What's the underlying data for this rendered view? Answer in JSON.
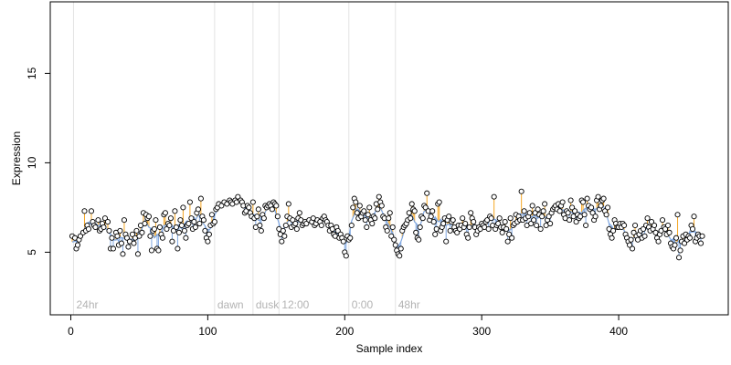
{
  "chart_data": {
    "type": "scatter",
    "title": "",
    "xlabel": "Sample index",
    "ylabel": "Expression",
    "xlim": [
      -15,
      480
    ],
    "ylim": [
      1.5,
      19
    ],
    "x_ticks": [
      0,
      100,
      200,
      300,
      400
    ],
    "y_ticks": [
      5,
      10,
      15
    ],
    "grid": false,
    "colors": {
      "point_fill": "#ffffff",
      "point_stroke": "#000000",
      "trend_line": "#7ea6e0",
      "residual_above": "#f5a623",
      "residual_below": "#7ea6e0",
      "annotation_line": "#e3e3e3",
      "annotation_text": "#b3b3b3"
    },
    "annotations": [
      {
        "label": "24hr",
        "x": 2
      },
      {
        "label": "dawn",
        "x": 105
      },
      {
        "label": "dusk",
        "x": 133
      },
      {
        "label": "12:00",
        "x": 152
      },
      {
        "label": "0:00",
        "x": 203
      },
      {
        "label": "48hr",
        "x": 237
      }
    ],
    "series_points": [
      [
        1,
        5.9
      ],
      [
        3,
        5.8
      ],
      [
        4,
        5.2
      ],
      [
        5,
        5.4
      ],
      [
        6,
        5.7
      ],
      [
        7,
        5.9
      ],
      [
        9,
        6.1
      ],
      [
        10,
        7.3
      ],
      [
        11,
        6.2
      ],
      [
        12,
        6.5
      ],
      [
        13,
        6.3
      ],
      [
        15,
        7.3
      ],
      [
        16,
        6.7
      ],
      [
        17,
        6.5
      ],
      [
        18,
        6.4
      ],
      [
        20,
        6.8
      ],
      [
        21,
        6.2
      ],
      [
        22,
        6.3
      ],
      [
        23,
        6.6
      ],
      [
        24,
        6.4
      ],
      [
        25,
        6.9
      ],
      [
        27,
        6.7
      ],
      [
        28,
        6.2
      ],
      [
        29,
        5.2
      ],
      [
        30,
        5.8
      ],
      [
        31,
        5.2
      ],
      [
        33,
        6.1
      ],
      [
        34,
        5.9
      ],
      [
        35,
        5.4
      ],
      [
        36,
        6.2
      ],
      [
        37,
        5.5
      ],
      [
        38,
        4.9
      ],
      [
        39,
        6.8
      ],
      [
        40,
        6.0
      ],
      [
        41,
        5.8
      ],
      [
        42,
        5.3
      ],
      [
        43,
        5.6
      ],
      [
        45,
        6.0
      ],
      [
        46,
        5.5
      ],
      [
        47,
        5.8
      ],
      [
        48,
        6.2
      ],
      [
        49,
        4.9
      ],
      [
        50,
        5.9
      ],
      [
        51,
        6.5
      ],
      [
        52,
        6.1
      ],
      [
        53,
        7.2
      ],
      [
        54,
        6.6
      ],
      [
        55,
        7.1
      ],
      [
        56,
        6.9
      ],
      [
        57,
        7.0
      ],
      [
        58,
        5.9
      ],
      [
        59,
        5.1
      ],
      [
        60,
        6.2
      ],
      [
        61,
        6.3
      ],
      [
        62,
        6.8
      ],
      [
        63,
        5.2
      ],
      [
        64,
        5.1
      ],
      [
        65,
        6.4
      ],
      [
        66,
        6.0
      ],
      [
        67,
        5.8
      ],
      [
        68,
        7.1
      ],
      [
        69,
        7.2
      ],
      [
        70,
        6.3
      ],
      [
        71,
        6.6
      ],
      [
        72,
        6.5
      ],
      [
        73,
        6.9
      ],
      [
        74,
        5.6
      ],
      [
        75,
        6.2
      ],
      [
        76,
        7.3
      ],
      [
        77,
        6.4
      ],
      [
        78,
        5.2
      ],
      [
        79,
        6.1
      ],
      [
        80,
        6.8
      ],
      [
        81,
        6.5
      ],
      [
        82,
        7.5
      ],
      [
        83,
        6.2
      ],
      [
        84,
        5.8
      ],
      [
        85,
        6.5
      ],
      [
        86,
        6.6
      ],
      [
        87,
        7.8
      ],
      [
        88,
        6.9
      ],
      [
        89,
        6.3
      ],
      [
        90,
        6.7
      ],
      [
        91,
        6.4
      ],
      [
        92,
        7.2
      ],
      [
        93,
        7.4
      ],
      [
        94,
        6.6
      ],
      [
        95,
        8.0
      ],
      [
        96,
        7.0
      ],
      [
        97,
        6.8
      ],
      [
        98,
        6.2
      ],
      [
        99,
        5.8
      ],
      [
        100,
        5.6
      ],
      [
        101,
        6.0
      ],
      [
        102,
        6.5
      ],
      [
        103,
        7.1
      ],
      [
        104,
        6.6
      ],
      [
        105,
        6.7
      ],
      [
        106,
        7.4
      ],
      [
        107,
        7.5
      ],
      [
        108,
        7.7
      ],
      [
        110,
        7.6
      ],
      [
        112,
        7.8
      ],
      [
        114,
        7.7
      ],
      [
        116,
        7.9
      ],
      [
        117,
        7.8
      ],
      [
        118,
        7.7
      ],
      [
        120,
        7.9
      ],
      [
        121,
        7.8
      ],
      [
        122,
        8.1
      ],
      [
        124,
        7.9
      ],
      [
        125,
        7.8
      ],
      [
        126,
        7.6
      ],
      [
        127,
        7.2
      ],
      [
        128,
        7.3
      ],
      [
        129,
        7.6
      ],
      [
        130,
        7.5
      ],
      [
        131,
        7.2
      ],
      [
        132,
        7.0
      ],
      [
        133,
        7.8
      ],
      [
        134,
        6.9
      ],
      [
        135,
        6.4
      ],
      [
        136,
        7.0
      ],
      [
        137,
        7.4
      ],
      [
        138,
        6.5
      ],
      [
        139,
        6.2
      ],
      [
        140,
        7.1
      ],
      [
        141,
        6.9
      ],
      [
        142,
        7.6
      ],
      [
        143,
        7.5
      ],
      [
        144,
        7.6
      ],
      [
        145,
        7.7
      ],
      [
        146,
        7.6
      ],
      [
        147,
        7.4
      ],
      [
        148,
        7.8
      ],
      [
        149,
        7.7
      ],
      [
        150,
        7.6
      ],
      [
        151,
        7.0
      ],
      [
        152,
        6.3
      ],
      [
        153,
        6.0
      ],
      [
        154,
        5.6
      ],
      [
        155,
        6.2
      ],
      [
        156,
        5.9
      ],
      [
        157,
        6.5
      ],
      [
        158,
        7.0
      ],
      [
        159,
        7.7
      ],
      [
        160,
        6.9
      ],
      [
        161,
        6.4
      ],
      [
        162,
        6.8
      ],
      [
        163,
        6.5
      ],
      [
        164,
        6.6
      ],
      [
        165,
        6.3
      ],
      [
        166,
        6.9
      ],
      [
        167,
        7.2
      ],
      [
        168,
        6.8
      ],
      [
        169,
        6.5
      ],
      [
        170,
        6.6
      ],
      [
        171,
        6.7
      ],
      [
        172,
        6.6
      ],
      [
        174,
        6.8
      ],
      [
        176,
        6.7
      ],
      [
        177,
        6.9
      ],
      [
        178,
        6.5
      ],
      [
        179,
        6.6
      ],
      [
        180,
        6.8
      ],
      [
        182,
        6.7
      ],
      [
        183,
        6.5
      ],
      [
        184,
        6.9
      ],
      [
        185,
        7.0
      ],
      [
        186,
        6.8
      ],
      [
        187,
        6.7
      ],
      [
        188,
        6.5
      ],
      [
        189,
        6.2
      ],
      [
        190,
        6.5
      ],
      [
        191,
        6.3
      ],
      [
        192,
        6.0
      ],
      [
        193,
        5.9
      ],
      [
        194,
        6.4
      ],
      [
        195,
        6.2
      ],
      [
        196,
        5.8
      ],
      [
        197,
        6.0
      ],
      [
        198,
        5.8
      ],
      [
        199,
        5.6
      ],
      [
        200,
        5.0
      ],
      [
        201,
        4.8
      ],
      [
        202,
        5.9
      ],
      [
        203,
        5.7
      ],
      [
        204,
        5.8
      ],
      [
        205,
        6.5
      ],
      [
        206,
        7.5
      ],
      [
        207,
        8.0
      ],
      [
        208,
        7.8
      ],
      [
        209,
        7.2
      ],
      [
        210,
        6.9
      ],
      [
        211,
        7.6
      ],
      [
        212,
        7.0
      ],
      [
        213,
        7.2
      ],
      [
        214,
        7.3
      ],
      [
        215,
        6.8
      ],
      [
        216,
        6.4
      ],
      [
        217,
        7.1
      ],
      [
        218,
        7.5
      ],
      [
        219,
        6.8
      ],
      [
        220,
        6.6
      ],
      [
        221,
        7.0
      ],
      [
        222,
        6.9
      ],
      [
        223,
        7.7
      ],
      [
        224,
        7.4
      ],
      [
        225,
        8.1
      ],
      [
        226,
        7.8
      ],
      [
        227,
        7.6
      ],
      [
        228,
        7.0
      ],
      [
        229,
        6.9
      ],
      [
        230,
        6.4
      ],
      [
        231,
        6.2
      ],
      [
        232,
        6.9
      ],
      [
        233,
        7.2
      ],
      [
        234,
        5.9
      ],
      [
        235,
        6.4
      ],
      [
        236,
        5.7
      ],
      [
        237,
        5.4
      ],
      [
        238,
        5.1
      ],
      [
        239,
        4.9
      ],
      [
        240,
        4.8
      ],
      [
        241,
        5.2
      ],
      [
        242,
        6.2
      ],
      [
        243,
        6.4
      ],
      [
        244,
        6.5
      ],
      [
        245,
        6.6
      ],
      [
        246,
        6.8
      ],
      [
        247,
        7.2
      ],
      [
        248,
        6.9
      ],
      [
        249,
        7.7
      ],
      [
        250,
        7.4
      ],
      [
        251,
        7.3
      ],
      [
        252,
        6.1
      ],
      [
        253,
        5.8
      ],
      [
        254,
        5.7
      ],
      [
        255,
        6.4
      ],
      [
        256,
        7.0
      ],
      [
        257,
        6.9
      ],
      [
        258,
        7.6
      ],
      [
        259,
        7.5
      ],
      [
        260,
        8.3
      ],
      [
        261,
        7.3
      ],
      [
        262,
        6.8
      ],
      [
        263,
        7.0
      ],
      [
        264,
        7.3
      ],
      [
        265,
        6.7
      ],
      [
        266,
        6.0
      ],
      [
        267,
        6.3
      ],
      [
        268,
        7.7
      ],
      [
        269,
        7.8
      ],
      [
        270,
        6.2
      ],
      [
        271,
        6.4
      ],
      [
        272,
        6.6
      ],
      [
        273,
        6.9
      ],
      [
        274,
        5.6
      ],
      [
        275,
        6.8
      ],
      [
        276,
        7.0
      ],
      [
        277,
        6.2
      ],
      [
        278,
        6.7
      ],
      [
        279,
        6.8
      ],
      [
        280,
        6.4
      ],
      [
        281,
        6.2
      ],
      [
        282,
        6.1
      ],
      [
        283,
        6.5
      ],
      [
        284,
        6.3
      ],
      [
        285,
        6.5
      ],
      [
        286,
        6.9
      ],
      [
        287,
        6.4
      ],
      [
        288,
        6.6
      ],
      [
        289,
        6.0
      ],
      [
        290,
        5.8
      ],
      [
        291,
        6.4
      ],
      [
        292,
        7.2
      ],
      [
        293,
        6.9
      ],
      [
        294,
        6.7
      ],
      [
        295,
        6.4
      ],
      [
        296,
        6.0
      ],
      [
        297,
        6.2
      ],
      [
        298,
        6.4
      ],
      [
        299,
        6.3
      ],
      [
        300,
        6.6
      ],
      [
        301,
        6.5
      ],
      [
        302,
        6.4
      ],
      [
        303,
        6.7
      ],
      [
        304,
        6.8
      ],
      [
        305,
        6.3
      ],
      [
        306,
        7.0
      ],
      [
        307,
        6.9
      ],
      [
        308,
        6.5
      ],
      [
        309,
        8.1
      ],
      [
        310,
        6.3
      ],
      [
        311,
        6.5
      ],
      [
        312,
        6.6
      ],
      [
        313,
        6.9
      ],
      [
        314,
        6.4
      ],
      [
        315,
        6.1
      ],
      [
        316,
        6.4
      ],
      [
        317,
        6.7
      ],
      [
        318,
        6.3
      ],
      [
        319,
        5.6
      ],
      [
        320,
        6.0
      ],
      [
        321,
        6.9
      ],
      [
        322,
        5.8
      ],
      [
        323,
        6.5
      ],
      [
        324,
        6.6
      ],
      [
        325,
        7.1
      ],
      [
        326,
        6.7
      ],
      [
        327,
        7.0
      ],
      [
        328,
        6.8
      ],
      [
        329,
        8.4
      ],
      [
        330,
        6.8
      ],
      [
        331,
        7.3
      ],
      [
        332,
        6.9
      ],
      [
        333,
        6.5
      ],
      [
        334,
        7.0
      ],
      [
        335,
        7.2
      ],
      [
        336,
        6.6
      ],
      [
        337,
        7.6
      ],
      [
        338,
        6.8
      ],
      [
        339,
        7.2
      ],
      [
        340,
        6.5
      ],
      [
        341,
        7.4
      ],
      [
        342,
        7.1
      ],
      [
        343,
        6.3
      ],
      [
        344,
        7.0
      ],
      [
        345,
        7.3
      ],
      [
        346,
        7.7
      ],
      [
        347,
        6.5
      ],
      [
        348,
        6.8
      ],
      [
        349,
        7.0
      ],
      [
        350,
        6.6
      ],
      [
        351,
        7.2
      ],
      [
        352,
        7.4
      ],
      [
        353,
        7.5
      ],
      [
        354,
        7.6
      ],
      [
        355,
        7.4
      ],
      [
        356,
        7.7
      ],
      [
        357,
        7.3
      ],
      [
        358,
        7.6
      ],
      [
        359,
        7.8
      ],
      [
        360,
        7.1
      ],
      [
        361,
        6.9
      ],
      [
        362,
        7.3
      ],
      [
        363,
        7.2
      ],
      [
        364,
        6.8
      ],
      [
        365,
        7.9
      ],
      [
        366,
        7.5
      ],
      [
        367,
        7.0
      ],
      [
        368,
        7.3
      ],
      [
        369,
        6.7
      ],
      [
        370,
        7.1
      ],
      [
        371,
        6.9
      ],
      [
        372,
        7.0
      ],
      [
        373,
        7.9
      ],
      [
        374,
        7.8
      ],
      [
        375,
        7.1
      ],
      [
        376,
        6.5
      ],
      [
        377,
        8.0
      ],
      [
        378,
        7.6
      ],
      [
        379,
        7.4
      ],
      [
        380,
        7.5
      ],
      [
        381,
        7.2
      ],
      [
        382,
        6.8
      ],
      [
        383,
        7.0
      ],
      [
        384,
        7.9
      ],
      [
        385,
        8.1
      ],
      [
        386,
        7.4
      ],
      [
        387,
        7.6
      ],
      [
        388,
        7.9
      ],
      [
        389,
        8.0
      ],
      [
        390,
        7.3
      ],
      [
        391,
        7.1
      ],
      [
        392,
        7.5
      ],
      [
        393,
        6.3
      ],
      [
        394,
        6.0
      ],
      [
        395,
        5.8
      ],
      [
        396,
        6.2
      ],
      [
        397,
        6.8
      ],
      [
        398,
        6.6
      ],
      [
        399,
        6.4
      ],
      [
        400,
        6.4
      ],
      [
        401,
        6.6
      ],
      [
        402,
        6.4
      ],
      [
        403,
        6.6
      ],
      [
        404,
        6.5
      ],
      [
        405,
        6.0
      ],
      [
        406,
        5.8
      ],
      [
        407,
        5.6
      ],
      [
        408,
        5.4
      ],
      [
        409,
        5.7
      ],
      [
        410,
        5.2
      ],
      [
        411,
        6.1
      ],
      [
        412,
        6.5
      ],
      [
        413,
        5.9
      ],
      [
        414,
        5.7
      ],
      [
        415,
        6.0
      ],
      [
        416,
        6.2
      ],
      [
        417,
        5.8
      ],
      [
        418,
        6.3
      ],
      [
        419,
        5.9
      ],
      [
        420,
        6.5
      ],
      [
        421,
        6.9
      ],
      [
        422,
        6.4
      ],
      [
        423,
        6.2
      ],
      [
        424,
        6.7
      ],
      [
        425,
        6.3
      ],
      [
        426,
        6.5
      ],
      [
        427,
        6.1
      ],
      [
        428,
        5.8
      ],
      [
        429,
        5.6
      ],
      [
        430,
        6.0
      ],
      [
        431,
        6.2
      ],
      [
        432,
        6.8
      ],
      [
        433,
        6.4
      ],
      [
        434,
        6.3
      ],
      [
        435,
        6.0
      ],
      [
        436,
        6.5
      ],
      [
        437,
        6.1
      ],
      [
        438,
        5.5
      ],
      [
        439,
        5.3
      ],
      [
        440,
        5.2
      ],
      [
        441,
        5.4
      ],
      [
        442,
        5.8
      ],
      [
        443,
        7.1
      ],
      [
        444,
        4.7
      ],
      [
        445,
        5.1
      ],
      [
        446,
        5.6
      ],
      [
        447,
        5.9
      ],
      [
        448,
        5.5
      ],
      [
        449,
        6.0
      ],
      [
        450,
        5.7
      ],
      [
        451,
        5.9
      ],
      [
        452,
        5.8
      ],
      [
        453,
        6.5
      ],
      [
        454,
        6.3
      ],
      [
        455,
        7.0
      ],
      [
        456,
        5.6
      ],
      [
        457,
        5.8
      ],
      [
        458,
        6.0
      ],
      [
        459,
        5.9
      ],
      [
        460,
        5.5
      ],
      [
        461,
        5.9
      ]
    ]
  }
}
